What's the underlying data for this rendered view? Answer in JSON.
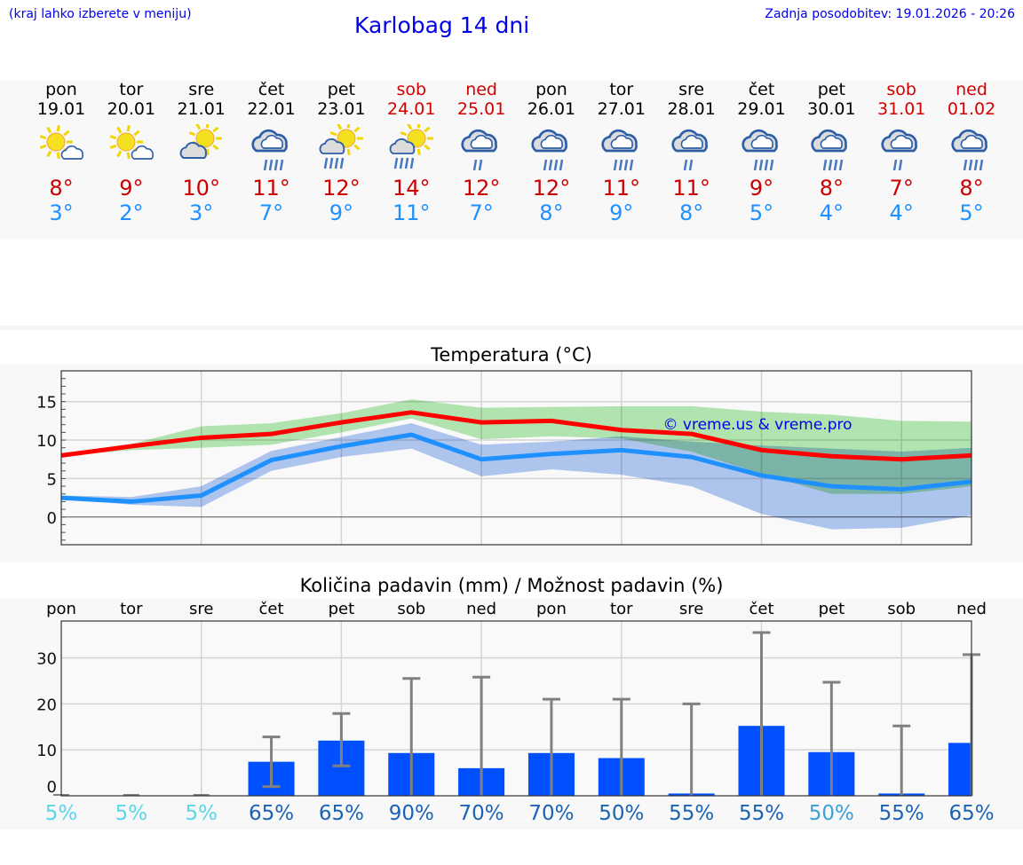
{
  "header": {
    "hint": "(kraj lahko izberete v meniju)",
    "title": "Karlobag 14 dni",
    "updated": "Zadnja posodobitev: 19.01.2026 - 20:26"
  },
  "days": [
    {
      "name": "pon",
      "date": "19.01",
      "weekend": false,
      "icon": "sun-small-cloud",
      "drops": 0,
      "tmax": "8°",
      "tmin": "3°"
    },
    {
      "name": "tor",
      "date": "20.01",
      "weekend": false,
      "icon": "sun-small-cloud",
      "drops": 0,
      "tmax": "9°",
      "tmin": "2°"
    },
    {
      "name": "sre",
      "date": "21.01",
      "weekend": false,
      "icon": "sun-behind-cloud",
      "drops": 0,
      "tmax": "10°",
      "tmin": "3°"
    },
    {
      "name": "čet",
      "date": "22.01",
      "weekend": false,
      "icon": "rain-cloud",
      "drops": 4,
      "tmax": "11°",
      "tmin": "7°"
    },
    {
      "name": "pet",
      "date": "23.01",
      "weekend": false,
      "icon": "sun-rain-cloud",
      "drops": 4,
      "tmax": "12°",
      "tmin": "9°"
    },
    {
      "name": "sob",
      "date": "24.01",
      "weekend": true,
      "icon": "sun-rain-cloud",
      "drops": 4,
      "tmax": "14°",
      "tmin": "11°"
    },
    {
      "name": "ned",
      "date": "25.01",
      "weekend": true,
      "icon": "rain-cloud",
      "drops": 2,
      "tmax": "12°",
      "tmin": "7°"
    },
    {
      "name": "pon",
      "date": "26.01",
      "weekend": false,
      "icon": "rain-cloud",
      "drops": 4,
      "tmax": "12°",
      "tmin": "8°"
    },
    {
      "name": "tor",
      "date": "27.01",
      "weekend": false,
      "icon": "rain-cloud",
      "drops": 4,
      "tmax": "11°",
      "tmin": "9°"
    },
    {
      "name": "sre",
      "date": "28.01",
      "weekend": false,
      "icon": "rain-cloud",
      "drops": 2,
      "tmax": "11°",
      "tmin": "8°"
    },
    {
      "name": "čet",
      "date": "29.01",
      "weekend": false,
      "icon": "rain-cloud",
      "drops": 4,
      "tmax": "9°",
      "tmin": "5°"
    },
    {
      "name": "pet",
      "date": "30.01",
      "weekend": false,
      "icon": "rain-cloud",
      "drops": 4,
      "tmax": "8°",
      "tmin": "4°"
    },
    {
      "name": "sob",
      "date": "31.01",
      "weekend": true,
      "icon": "rain-cloud",
      "drops": 2,
      "tmax": "7°",
      "tmin": "4°"
    },
    {
      "name": "ned",
      "date": "01.02",
      "weekend": true,
      "icon": "rain-cloud",
      "drops": 4,
      "tmax": "8°",
      "tmin": "5°"
    }
  ],
  "colors": {
    "max": "#ff0000",
    "min": "#1e90ff",
    "max_band": "#a8e6a6",
    "min_band": "#a9c3f2",
    "bar": "#0050ff",
    "err": "#808080",
    "pct_low": "#5ad6e8",
    "pct_mid": "#3aa0d8",
    "pct_high": "#1a63b4"
  },
  "chart_data": [
    {
      "type": "line",
      "title": "Temperatura (°C)",
      "watermark": "© vreme.us & vreme.pro",
      "ylim": [
        -3.6,
        19
      ],
      "yticks": [
        0,
        5,
        10,
        15
      ],
      "x": [
        "19.01",
        "20.01",
        "21.01",
        "22.01",
        "23.01",
        "24.01",
        "25.01",
        "26.01",
        "27.01",
        "28.01",
        "29.01",
        "30.01",
        "31.01",
        "01.02"
      ],
      "series": [
        {
          "name": "max",
          "values": [
            8.0,
            9.2,
            10.3,
            10.8,
            12.3,
            13.6,
            12.3,
            12.5,
            11.3,
            10.8,
            8.7,
            7.9,
            7.5,
            8.0
          ],
          "band_upper": [
            8.2,
            9.5,
            11.8,
            12.2,
            13.5,
            15.3,
            14.2,
            14.3,
            14.4,
            14.4,
            13.7,
            13.3,
            12.5,
            12.4
          ],
          "band_lower": [
            7.9,
            8.7,
            9.0,
            9.4,
            11.0,
            12.8,
            10.1,
            10.5,
            10.2,
            8.5,
            5.6,
            3.0,
            3.0,
            4.0
          ]
        },
        {
          "name": "min",
          "values": [
            2.5,
            2.0,
            2.8,
            7.4,
            9.2,
            10.7,
            7.5,
            8.2,
            8.7,
            7.8,
            5.4,
            4.0,
            3.6,
            4.6
          ],
          "band_upper": [
            2.8,
            2.6,
            4.0,
            8.6,
            10.4,
            12.2,
            9.4,
            9.8,
            10.5,
            9.8,
            9.3,
            8.9,
            8.5,
            9.0
          ],
          "band_lower": [
            2.4,
            1.6,
            1.3,
            6.0,
            7.8,
            8.9,
            5.3,
            6.2,
            5.5,
            4.0,
            0.4,
            -1.6,
            -1.4,
            0.2
          ]
        }
      ]
    },
    {
      "type": "bar",
      "title": "Količina padavin (mm) / Možnost padavin (%)",
      "ylim": [
        0,
        38
      ],
      "yticks": [
        0,
        10,
        20,
        30
      ],
      "categories": [
        "pon",
        "tor",
        "sre",
        "čet",
        "pet",
        "sob",
        "ned",
        "pon",
        "tor",
        "sre",
        "čet",
        "pet",
        "sob",
        "ned"
      ],
      "values": [
        0,
        0,
        0,
        7.4,
        12,
        9.3,
        6,
        9.3,
        8.2,
        0.5,
        15.2,
        9.5,
        0.5,
        11.5
      ],
      "err_low": [
        0,
        0,
        0,
        2,
        6.5,
        0,
        0,
        0,
        0,
        0,
        0,
        0,
        0,
        0
      ],
      "err_high": [
        0,
        0,
        0,
        12.8,
        17.9,
        25.5,
        25.8,
        21,
        21,
        20,
        35.5,
        24.7,
        15.2,
        30.7
      ],
      "probability": [
        "5%",
        "5%",
        "5%",
        "65%",
        "65%",
        "90%",
        "70%",
        "70%",
        "50%",
        "55%",
        "55%",
        "50%",
        "55%",
        "65%"
      ],
      "probability_level": [
        "low",
        "low",
        "low",
        "high",
        "high",
        "high",
        "high",
        "high",
        "high",
        "high",
        "high",
        "mid",
        "high",
        "high"
      ]
    }
  ]
}
